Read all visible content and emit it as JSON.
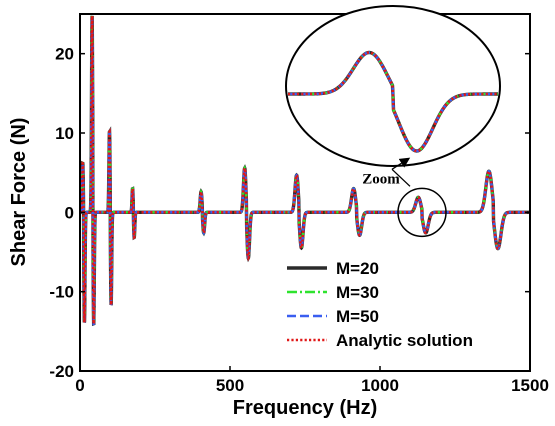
{
  "chart_data": {
    "type": "line",
    "xlabel": "Frequency (Hz)",
    "ylabel": "Shear Force (N)",
    "xlim": [
      0,
      1500
    ],
    "ylim": [
      -20,
      25
    ],
    "xticks": [
      0,
      500,
      1000,
      1500
    ],
    "yticks": [
      -20,
      -10,
      0,
      10,
      20
    ],
    "grid": false,
    "legend_position": "bottom-right",
    "resonances": [
      {
        "f": 12,
        "peak": 6.3,
        "trough": -14.0
      },
      {
        "f": 43,
        "peak": 25,
        "trough": -14.3
      },
      {
        "f": 101,
        "peak": 10.3,
        "trough": -11.8
      },
      {
        "f": 178,
        "peak": 3.0,
        "trough": -3.2
      },
      {
        "f": 408,
        "peak": 2.6,
        "trough": -2.6
      },
      {
        "f": 555,
        "peak": 5.6,
        "trough": -5.8
      },
      {
        "f": 730,
        "peak": 4.7,
        "trough": -4.5
      },
      {
        "f": 922,
        "peak": 3.0,
        "trough": -2.9
      },
      {
        "f": 1140,
        "peak": 1.9,
        "trough": -2.6
      },
      {
        "f": 1378,
        "peak": 5.2,
        "trough": -4.6
      }
    ],
    "series": [
      {
        "name": "M=20",
        "color": "#2b2b2b",
        "style": "solid"
      },
      {
        "name": "M=30",
        "color": "#2ee32e",
        "style": "dashdot"
      },
      {
        "name": "M=50",
        "color": "#3a5ef0",
        "style": "dashed"
      },
      {
        "name": "Analytic solution",
        "color": "#e01818",
        "style": "dotted"
      }
    ],
    "annotations": [
      {
        "text": "Zoom",
        "target_frequency": 1140
      }
    ]
  }
}
